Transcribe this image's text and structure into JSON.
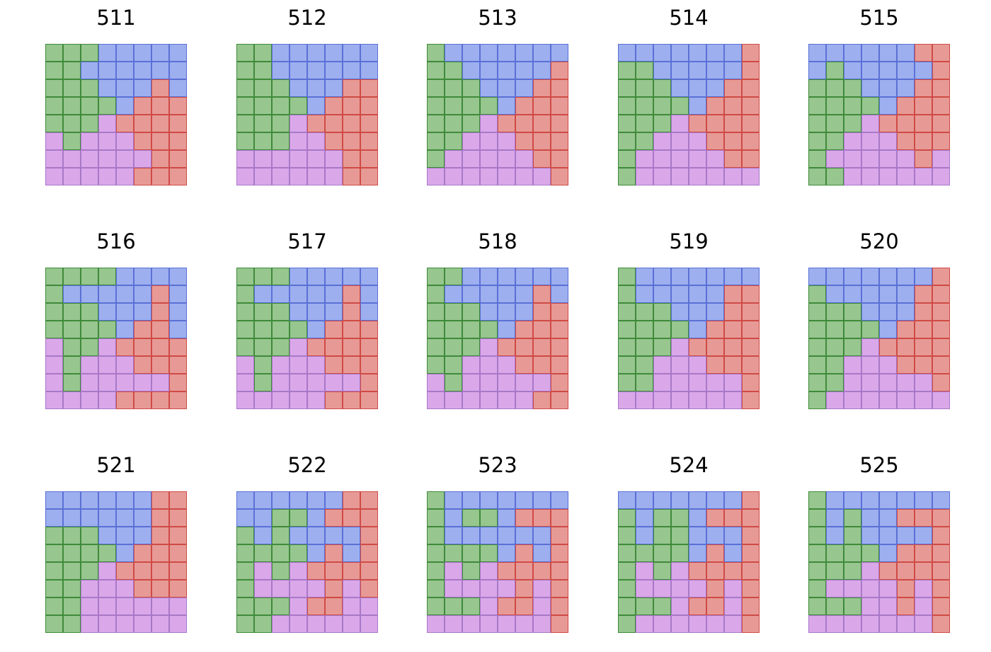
{
  "colors": {
    "G": {
      "fill": "#97c68f",
      "stroke": "#3f8a3a"
    },
    "B": {
      "fill": "#9dafef",
      "stroke": "#5b70d6"
    },
    "R": {
      "fill": "#e79a95",
      "stroke": "#cf4a46"
    },
    "P": {
      "fill": "#daa8e9",
      "stroke": "#a878c8"
    }
  },
  "panels": [
    {
      "label": "511",
      "grid": [
        "GGGBBBBB",
        "GGBBBBBB",
        "GGGBBBRB",
        "GGGGBRRR",
        "GGGPRRRR",
        "PGPPPRRR",
        "PPPPPPRR",
        "PPPPPRRR"
      ]
    },
    {
      "label": "512",
      "grid": [
        "GGBBBBBB",
        "GGBBBBBB",
        "GGGBBBRR",
        "GGGGBRRR",
        "GGGPRRRR",
        "GGGPPRRR",
        "PPPPPPRR",
        "PPPPPPRR"
      ]
    },
    {
      "label": "513",
      "grid": [
        "GBBBBBBB",
        "GGBBBBBR",
        "GGGBBBRR",
        "GGGGBRRR",
        "GGGPRRRR",
        "GGPPPRRR",
        "GPPPPPRR",
        "PPPPPPPR"
      ]
    },
    {
      "label": "514",
      "grid": [
        "BBBBBBBR",
        "GGBBBBBR",
        "GGGBBBRR",
        "GGGGBRRR",
        "GGGPRRRR",
        "GGPPPRRR",
        "GPPPPPRR",
        "GPPPPPPP"
      ]
    },
    {
      "label": "515",
      "grid": [
        "BBBBBBRR",
        "BGBBBBBR",
        "GGGBBBRR",
        "GGGGBRRR",
        "GGGPRRRR",
        "GGPPPRRR",
        "GPPPPPRP",
        "GGPPPPPP"
      ]
    },
    {
      "label": "516",
      "grid": [
        "GGGGBBBB",
        "GBBBBBRB",
        "GGGBBBRB",
        "GGGGBRRB",
        "PGGPRRRR",
        "PGPPPRRR",
        "PGPPPPPR",
        "PPPPRRRR"
      ]
    },
    {
      "label": "517",
      "grid": [
        "GGGBBBBB",
        "GBBBBBRB",
        "GGGBBBRB",
        "GGGGBRRR",
        "GGGPRRRR",
        "PGPPPRRR",
        "PGPPPPPR",
        "PPPPPRRR"
      ]
    },
    {
      "label": "518",
      "grid": [
        "GGBBBBBB",
        "GBBBBBRB",
        "GGGBBBRR",
        "GGGGBRRR",
        "GGGPRRRR",
        "GGPPPRRR",
        "PGPPPPPR",
        "PPPPPPRR"
      ]
    },
    {
      "label": "519",
      "grid": [
        "GBBBBBBB",
        "GBBBBBRR",
        "GGGBBBRR",
        "GGGGBRRR",
        "GGGPRRRR",
        "GGPPPRRR",
        "GGPPPPPR",
        "PPPPPPPR"
      ]
    },
    {
      "label": "520",
      "grid": [
        "BBBBBBBR",
        "GBBBBBRR",
        "GGGBBBRR",
        "GGGGBRRR",
        "GGGPRRRR",
        "GGPPPRRR",
        "GGPPPPPR",
        "GPPPPPPP"
      ]
    },
    {
      "label": "521",
      "grid": [
        "BBBBBBRR",
        "BBBBBBRR",
        "GGGBBBRR",
        "GGGGBRRR",
        "GGGPRRRR",
        "GGPPPRRR",
        "GGPPPPPP",
        "GGPPPPPP"
      ]
    },
    {
      "label": "522",
      "grid": [
        "BBBBBBRR",
        "BBGGBRRR",
        "GBGBBBBR",
        "GGGGBRBR",
        "GPGPRRRR",
        "GPPPPRPR",
        "GGGPRRPP",
        "GGPPPPPP"
      ]
    },
    {
      "label": "523",
      "grid": [
        "GBBBBBBB",
        "GBGGBRRR",
        "GBBBBBBR",
        "GGGGBRBR",
        "GPGPRRRR",
        "GPPPPRPR",
        "GGGPRRPR",
        "PPPPPPPR"
      ]
    },
    {
      "label": "524",
      "grid": [
        "BBBBBBBR",
        "GBGGBRRR",
        "GBGGBBBR",
        "GGGGBRBR",
        "GPGPRRRR",
        "GPPPPRPR",
        "GGGPRRPR",
        "GPPPPPPR"
      ]
    },
    {
      "label": "525",
      "grid": [
        "GBBBBBBB",
        "GBGBBRRR",
        "GBGBBBBR",
        "GGGGBRRR",
        "GGGPRRRR",
        "GPPPPRPR",
        "GGGPPRPR",
        "PPPPPPPR"
      ]
    }
  ]
}
